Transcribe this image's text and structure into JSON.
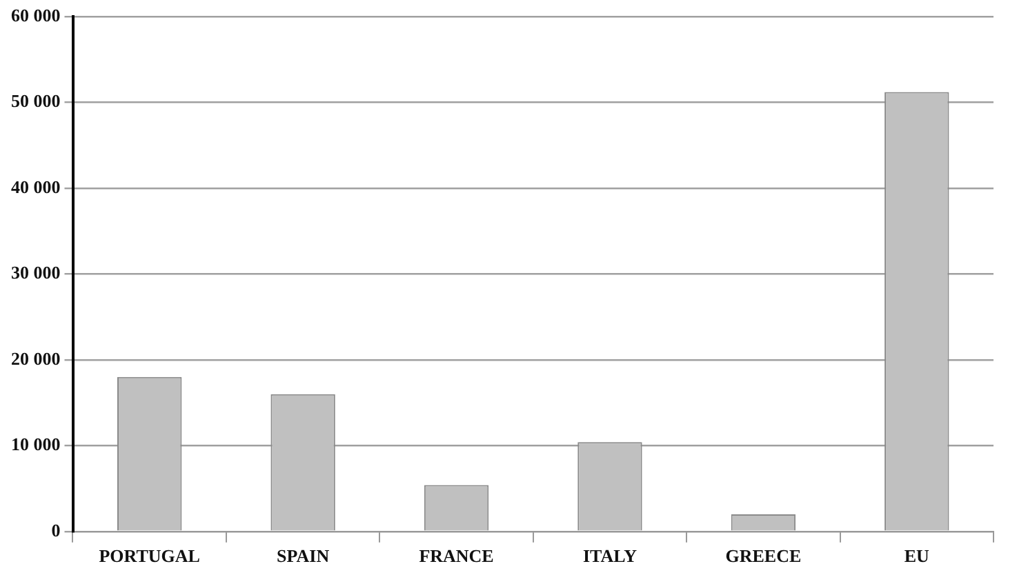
{
  "chart_data": {
    "type": "bar",
    "categories": [
      "PORTUGAL",
      "SPAIN",
      "FRANCE",
      "ITALY",
      "GREECE",
      "EU"
    ],
    "values": [
      18000,
      16000,
      5400,
      10400,
      2000,
      51200
    ],
    "color": "#c0c0c0",
    "ylim": [
      0,
      60000
    ],
    "yticks": [
      {
        "value": 0,
        "label": "0"
      },
      {
        "value": 10000,
        "label": "10 000"
      },
      {
        "value": 20000,
        "label": "20 000"
      },
      {
        "value": 30000,
        "label": "30 000"
      },
      {
        "value": 40000,
        "label": "40 000"
      },
      {
        "value": 50000,
        "label": "50 000"
      },
      {
        "value": 60000,
        "label": "60 000"
      }
    ],
    "grid": "y",
    "legend": false
  }
}
